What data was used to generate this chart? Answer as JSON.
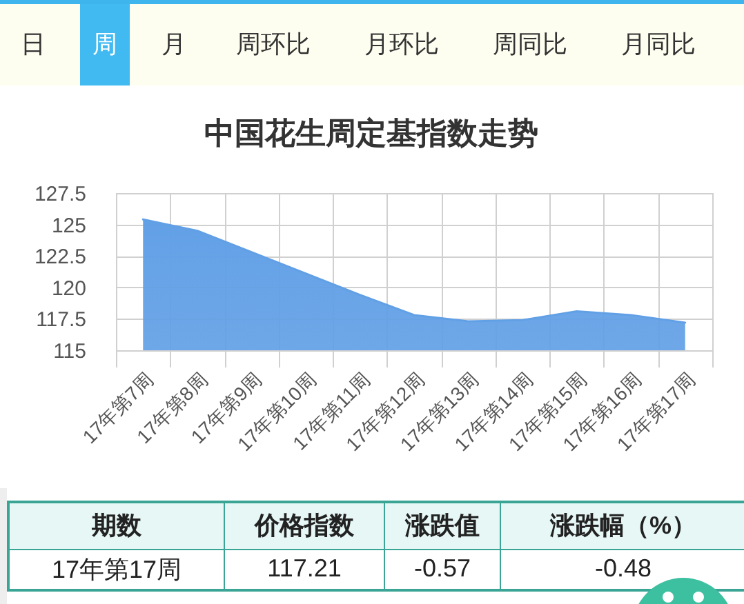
{
  "chart_data": [
    {
      "type": "other",
      "annotations": [
        "日",
        "周",
        "月",
        "周环比",
        "月环比",
        "周同比",
        "月同比"
      ]
    },
    {
      "type": "area",
      "title": "中国花生周定基指数走势",
      "categories": [
        "17年第7周",
        "17年第8周",
        "17年第9周",
        "17年第10周",
        "17年第11周",
        "17年第12周",
        "17年第13周",
        "17年第14周",
        "17年第15周",
        "17年第16周",
        "17年第17周"
      ],
      "series": [
        {
          "color": "#62a0e6",
          "values": [
            125.4,
            124.5,
            122.8,
            121.1,
            119.4,
            117.8,
            117.3,
            117.4,
            118.1,
            117.8,
            117.2
          ]
        }
      ],
      "ylim": [
        115,
        127.5
      ],
      "yticks": [
        115,
        117.5,
        120,
        122.5,
        125,
        127.5
      ],
      "grid": true
    },
    {
      "type": "other",
      "annotations": [
        "期数",
        "价格指数",
        "涨跌值",
        "涨跌幅（%）",
        "17年第17周",
        "117.21",
        "-0.57",
        "-0.48"
      ]
    }
  ]
}
